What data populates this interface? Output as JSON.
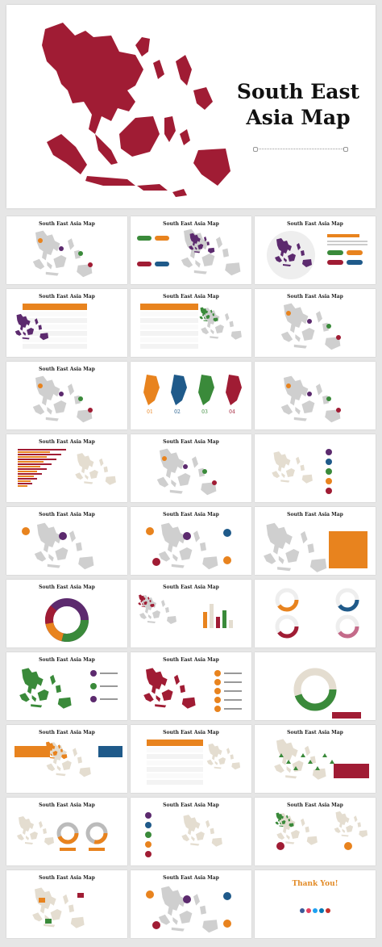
{
  "hero": {
    "title_line1": "South East",
    "title_line2": "Asia Map",
    "map_color": "#a01c34"
  },
  "thumbnails": [
    {
      "title": "South East Asia Map",
      "variant": "labels-grey"
    },
    {
      "title": "South East Asia Map",
      "variant": "pills-color"
    },
    {
      "title": "South East Asia Map",
      "variant": "globe"
    },
    {
      "title": "South East Asia Map",
      "variant": "table-left"
    },
    {
      "title": "South East Asia Map",
      "variant": "table-right"
    },
    {
      "title": "South East Asia Map",
      "variant": "pins-list"
    },
    {
      "title": "South East Asia Map",
      "variant": "markers-right"
    },
    {
      "title": "",
      "variant": "countries-4"
    },
    {
      "title": "",
      "variant": "numbers-map"
    },
    {
      "title": "South East Asia Map",
      "variant": "hbars"
    },
    {
      "title": "South East Asia Map",
      "variant": "pins-labels"
    },
    {
      "title": "",
      "variant": "icons-list"
    },
    {
      "title": "South East Asia Map",
      "variant": "two-callouts"
    },
    {
      "title": "South East Asia Map",
      "variant": "seas"
    },
    {
      "title": "South East Asia Map",
      "variant": "orange-box"
    },
    {
      "title": "South East Asia Map",
      "variant": "donut"
    },
    {
      "title": "South East Asia Map",
      "variant": "small-bars"
    },
    {
      "title": "",
      "variant": "rings-4"
    },
    {
      "title": "South East Asia Map",
      "variant": "legend-climate"
    },
    {
      "title": "South East Asia Map",
      "variant": "legend-mobile"
    },
    {
      "title": "",
      "variant": "big-donut"
    },
    {
      "title": "South East Asia Map",
      "variant": "boxes-2"
    },
    {
      "title": "South East Asia Map",
      "variant": "table-orange"
    },
    {
      "title": "South East Asia Map",
      "variant": "pipeline"
    },
    {
      "title": "South East Asia Map",
      "variant": "gauges"
    },
    {
      "title": "South East Asia Map",
      "variant": "icons-left"
    },
    {
      "title": "South East Asia Map",
      "variant": "cities"
    },
    {
      "title": "South East Asia Map",
      "variant": "percent-flags"
    },
    {
      "title": "South East Asia Map",
      "variant": "seas-2"
    },
    {
      "title": "",
      "variant": "thank-you"
    }
  ],
  "thank_you": {
    "title": "Thank You!",
    "social_colors": [
      "#3b5998",
      "#e4405f",
      "#1da1f2",
      "#0077b5",
      "#c4302b"
    ]
  },
  "palette": {
    "red": "#a01c34",
    "orange": "#e8831e",
    "green": "#3a8a3a",
    "purple": "#5c2a6e",
    "blue": "#1f5a8a",
    "grey": "#cfcfcf",
    "beige": "#e4ddd0"
  }
}
